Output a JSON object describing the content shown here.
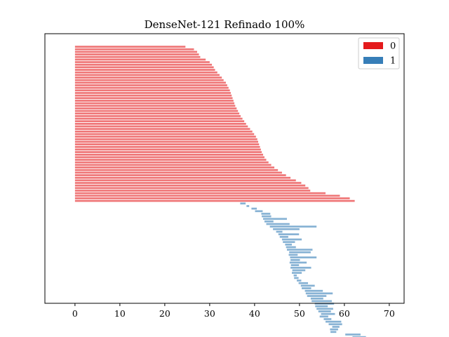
{
  "chart_data": {
    "type": "bar",
    "orientation": "horizontal",
    "title": "DenseNet-121 Refinado 100%",
    "xlabel": "",
    "ylabel": "",
    "xlim": [
      -6.7,
      73.3
    ],
    "xticks": [
      0,
      10,
      20,
      30,
      40,
      50,
      60,
      70
    ],
    "grid": false,
    "legend": {
      "placement": "top-right",
      "entries": [
        {
          "label": "0",
          "color": "#e41a1c"
        },
        {
          "label": "1",
          "color": "#377eb8"
        }
      ]
    },
    "bar_alpha": 0.6,
    "series": [
      {
        "name": "0",
        "color": "#e41a1c",
        "bars": [
          {
            "start": 0,
            "end": 24.6
          },
          {
            "start": 0,
            "end": 26.5
          },
          {
            "start": 0,
            "end": 27.2
          },
          {
            "start": 0,
            "end": 27.6
          },
          {
            "start": 0,
            "end": 27.9
          },
          {
            "start": 0,
            "end": 29.1
          },
          {
            "start": 0,
            "end": 30.0
          },
          {
            "start": 0,
            "end": 30.5
          },
          {
            "start": 0,
            "end": 30.9
          },
          {
            "start": 0,
            "end": 31.2
          },
          {
            "start": 0,
            "end": 31.7
          },
          {
            "start": 0,
            "end": 32.2
          },
          {
            "start": 0,
            "end": 32.7
          },
          {
            "start": 0,
            "end": 33.1
          },
          {
            "start": 0,
            "end": 33.6
          },
          {
            "start": 0,
            "end": 33.9
          },
          {
            "start": 0,
            "end": 34.2
          },
          {
            "start": 0,
            "end": 34.5
          },
          {
            "start": 0,
            "end": 34.7
          },
          {
            "start": 0,
            "end": 34.9
          },
          {
            "start": 0,
            "end": 35.1
          },
          {
            "start": 0,
            "end": 35.3
          },
          {
            "start": 0,
            "end": 35.5
          },
          {
            "start": 0,
            "end": 35.7
          },
          {
            "start": 0,
            "end": 36.0
          },
          {
            "start": 0,
            "end": 36.3
          },
          {
            "start": 0,
            "end": 36.6
          },
          {
            "start": 0,
            "end": 36.9
          },
          {
            "start": 0,
            "end": 37.3
          },
          {
            "start": 0,
            "end": 37.7
          },
          {
            "start": 0,
            "end": 38.1
          },
          {
            "start": 0,
            "end": 38.5
          },
          {
            "start": 0,
            "end": 39.0
          },
          {
            "start": 0,
            "end": 39.5
          },
          {
            "start": 0,
            "end": 39.9
          },
          {
            "start": 0,
            "end": 40.3
          },
          {
            "start": 0,
            "end": 40.6
          },
          {
            "start": 0,
            "end": 40.8
          },
          {
            "start": 0,
            "end": 41.0
          },
          {
            "start": 0,
            "end": 41.2
          },
          {
            "start": 0,
            "end": 41.4
          },
          {
            "start": 0,
            "end": 41.6
          },
          {
            "start": 0,
            "end": 41.9
          },
          {
            "start": 0,
            "end": 42.2
          },
          {
            "start": 0,
            "end": 42.6
          },
          {
            "start": 0,
            "end": 43.1
          },
          {
            "start": 0,
            "end": 43.7
          },
          {
            "start": 0,
            "end": 44.4
          },
          {
            "start": 0,
            "end": 45.2
          },
          {
            "start": 0,
            "end": 46.1
          },
          {
            "start": 0,
            "end": 47.0
          },
          {
            "start": 0,
            "end": 48.0
          },
          {
            "start": 0,
            "end": 49.2
          },
          {
            "start": 0,
            "end": 50.4
          },
          {
            "start": 0,
            "end": 51.3
          },
          {
            "start": 0,
            "end": 52.0
          },
          {
            "start": 0,
            "end": 52.4
          },
          {
            "start": 0,
            "end": 55.8
          },
          {
            "start": 0,
            "end": 59.0
          },
          {
            "start": 0,
            "end": 61.2
          },
          {
            "start": 0,
            "end": 62.3
          }
        ]
      },
      {
        "name": "1",
        "color": "#377eb8",
        "bars": [
          {
            "start": 36.8,
            "end": 38.0
          },
          {
            "start": 38.2,
            "end": 38.8
          },
          {
            "start": 39.3,
            "end": 40.5
          },
          {
            "start": 40.1,
            "end": 41.8
          },
          {
            "start": 41.5,
            "end": 43.5
          },
          {
            "start": 41.6,
            "end": 43.7
          },
          {
            "start": 41.9,
            "end": 47.2
          },
          {
            "start": 42.2,
            "end": 44.2
          },
          {
            "start": 42.6,
            "end": 47.8
          },
          {
            "start": 43.4,
            "end": 53.8
          },
          {
            "start": 44.1,
            "end": 50.0
          },
          {
            "start": 44.8,
            "end": 46.2
          },
          {
            "start": 45.3,
            "end": 49.9
          },
          {
            "start": 45.6,
            "end": 47.5
          },
          {
            "start": 46.1,
            "end": 50.5
          },
          {
            "start": 46.3,
            "end": 49.0
          },
          {
            "start": 46.8,
            "end": 48.3
          },
          {
            "start": 47.0,
            "end": 49.2
          },
          {
            "start": 47.2,
            "end": 52.9
          },
          {
            "start": 47.7,
            "end": 52.5
          },
          {
            "start": 47.6,
            "end": 49.6
          },
          {
            "start": 47.9,
            "end": 53.8
          },
          {
            "start": 48.0,
            "end": 50.1
          },
          {
            "start": 47.8,
            "end": 51.6
          },
          {
            "start": 48.1,
            "end": 49.9
          },
          {
            "start": 48.0,
            "end": 52.6
          },
          {
            "start": 48.4,
            "end": 51.3
          },
          {
            "start": 48.3,
            "end": 50.5
          },
          {
            "start": 48.7,
            "end": 49.4
          },
          {
            "start": 48.8,
            "end": 49.8
          },
          {
            "start": 49.4,
            "end": 50.4
          },
          {
            "start": 49.8,
            "end": 51.9
          },
          {
            "start": 50.3,
            "end": 53.4
          },
          {
            "start": 50.5,
            "end": 52.6
          },
          {
            "start": 51.2,
            "end": 55.2
          },
          {
            "start": 51.4,
            "end": 57.4
          },
          {
            "start": 51.7,
            "end": 56.0
          },
          {
            "start": 52.5,
            "end": 55.3
          },
          {
            "start": 52.7,
            "end": 57.2
          },
          {
            "start": 53.4,
            "end": 57.7
          },
          {
            "start": 53.5,
            "end": 56.3
          },
          {
            "start": 53.8,
            "end": 57.5
          },
          {
            "start": 54.2,
            "end": 57.0
          },
          {
            "start": 54.8,
            "end": 57.9
          },
          {
            "start": 54.5,
            "end": 56.4
          },
          {
            "start": 55.4,
            "end": 57.1
          },
          {
            "start": 55.8,
            "end": 59.3
          },
          {
            "start": 56.5,
            "end": 59.5
          },
          {
            "start": 57.3,
            "end": 58.9
          },
          {
            "start": 56.8,
            "end": 58.6
          },
          {
            "start": 56.9,
            "end": 58.2
          },
          {
            "start": 60.2,
            "end": 63.6
          },
          {
            "start": 61.8,
            "end": 64.8
          },
          {
            "start": 63.4,
            "end": 67.1
          },
          {
            "start": 64.2,
            "end": 66.6
          }
        ]
      }
    ]
  }
}
